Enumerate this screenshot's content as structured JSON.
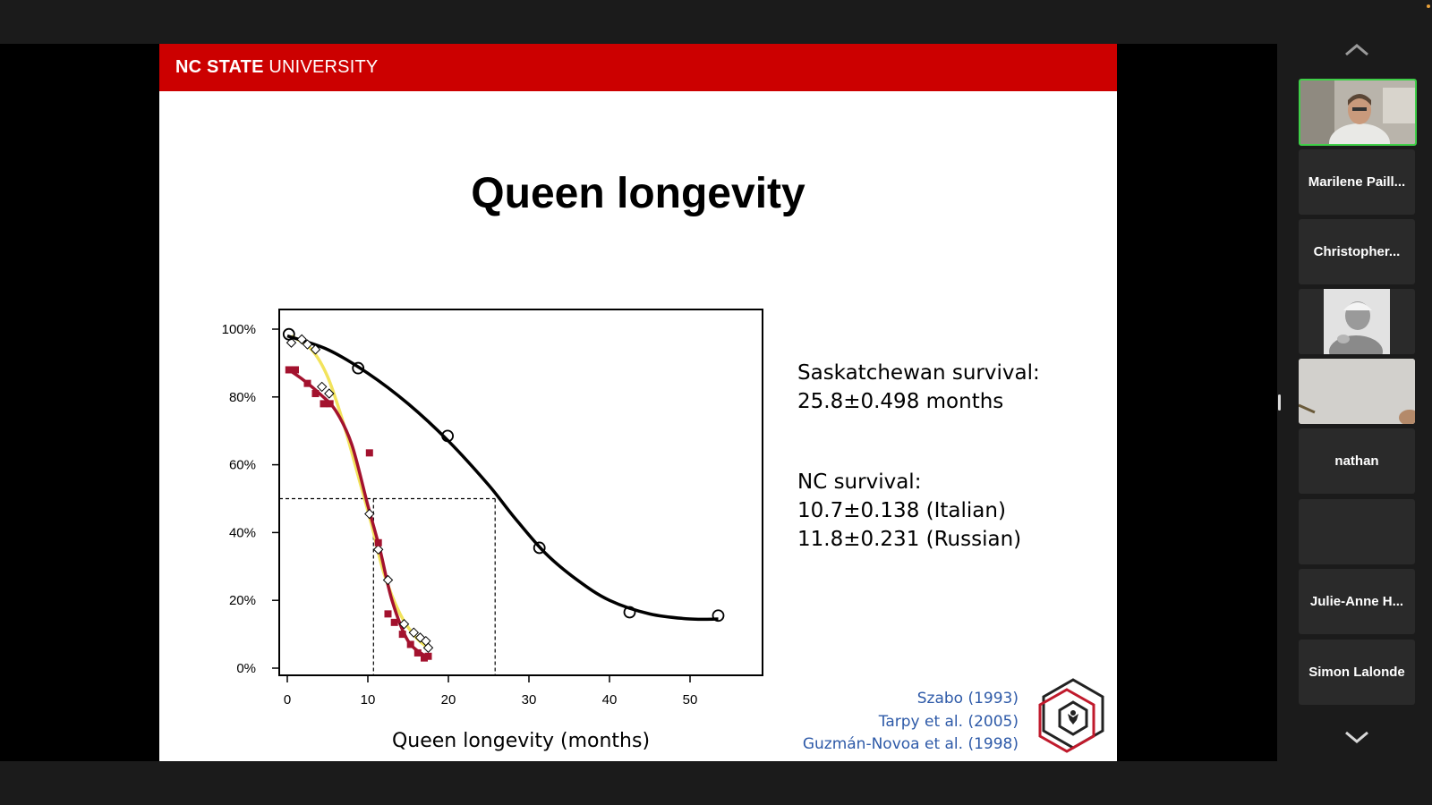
{
  "slide": {
    "brand_bold": "NC STATE",
    "brand_regular": " UNIVERSITY",
    "title": "Queen longevity",
    "stats": {
      "sask_label": "Saskatchewan survival:",
      "sask_value": "25.8±0.498 months",
      "nc_label": "NC survival:",
      "nc_italian": "10.7±0.138 (Italian)",
      "nc_russian": "11.8±0.231 (Russian)"
    },
    "references": [
      "Szabo (1993)",
      "Tarpy et al. (2005)",
      "Guzmán-Novoa et al. (1998)"
    ]
  },
  "chart_data": {
    "type": "line",
    "xlabel": "Queen longevity (months)",
    "ylabel": "",
    "xlim": [
      -1,
      59
    ],
    "ylim": [
      0,
      100
    ],
    "x_ticks": [
      0,
      10,
      20,
      30,
      40,
      50
    ],
    "y_ticks": [
      0,
      20,
      40,
      60,
      80,
      100
    ],
    "y_tick_labels": [
      "0%",
      "20%",
      "40%",
      "60%",
      "80%",
      "100%"
    ],
    "series": [
      {
        "name": "Saskatchewan",
        "color": "#000000",
        "marker": "circle",
        "points": [
          [
            0.2,
            98.5
          ],
          [
            8.8,
            88.5
          ],
          [
            19.9,
            68.5
          ],
          [
            31.3,
            35.5
          ],
          [
            42.5,
            16.5
          ],
          [
            53.5,
            15.5
          ]
        ],
        "fit": [
          [
            0,
            98
          ],
          [
            5,
            94
          ],
          [
            10,
            87
          ],
          [
            15,
            78
          ],
          [
            20,
            67
          ],
          [
            25,
            54
          ],
          [
            28,
            45
          ],
          [
            32,
            34
          ],
          [
            36,
            26
          ],
          [
            40,
            20
          ],
          [
            45,
            16
          ],
          [
            50,
            14.5
          ],
          [
            53.5,
            14.5
          ]
        ]
      },
      {
        "name": "Italian",
        "color": "#f2e35c",
        "marker": "diamond",
        "points": [
          [
            0.5,
            96
          ],
          [
            1.8,
            97
          ],
          [
            2.5,
            95.5
          ],
          [
            3.5,
            94
          ],
          [
            4.3,
            83
          ],
          [
            5.2,
            81
          ],
          [
            10.2,
            45.5
          ],
          [
            11.3,
            35
          ],
          [
            12.5,
            26
          ],
          [
            14.5,
            13
          ],
          [
            15.7,
            10.5
          ],
          [
            16.5,
            9
          ],
          [
            17.2,
            8
          ],
          [
            17.5,
            6
          ]
        ],
        "fit": [
          [
            0.5,
            98
          ],
          [
            3,
            94
          ],
          [
            5,
            86
          ],
          [
            7,
            72
          ],
          [
            9,
            55
          ],
          [
            10.5,
            42
          ],
          [
            12,
            28
          ],
          [
            14,
            16
          ],
          [
            16,
            9
          ],
          [
            17.8,
            5.5
          ]
        ]
      },
      {
        "name": "Russian",
        "color": "#a3122e",
        "marker": "square",
        "points": [
          [
            0.2,
            88
          ],
          [
            1,
            88
          ],
          [
            2.5,
            84
          ],
          [
            3.5,
            81
          ],
          [
            4.5,
            78
          ],
          [
            5.3,
            78
          ],
          [
            10.2,
            63.5
          ],
          [
            11.3,
            37
          ],
          [
            12.5,
            16
          ],
          [
            13.3,
            13.5
          ],
          [
            14.3,
            10
          ],
          [
            15.3,
            7
          ],
          [
            16.2,
            4.5
          ],
          [
            17,
            3
          ],
          [
            17.5,
            3.5
          ]
        ],
        "fit": [
          [
            0.2,
            88
          ],
          [
            2,
            85
          ],
          [
            4,
            81
          ],
          [
            6,
            76
          ],
          [
            8,
            66
          ],
          [
            10,
            48
          ],
          [
            11.5,
            35
          ],
          [
            13,
            20
          ],
          [
            15,
            8
          ],
          [
            17.5,
            3
          ]
        ]
      }
    ],
    "median_lines": [
      {
        "x": 10.7,
        "y": 50
      },
      {
        "x": 25.8,
        "y": 50
      }
    ]
  },
  "sidebar": {
    "participants": [
      {
        "name": "",
        "video": true,
        "active": true
      },
      {
        "name": "Marilene Paill...",
        "video": false
      },
      {
        "name": "Christopher...",
        "video": false
      },
      {
        "name": "",
        "video": true,
        "photo": true
      },
      {
        "name": "",
        "video": true
      },
      {
        "name": "nathan",
        "video": false
      },
      {
        "name": "",
        "video": false
      },
      {
        "name": "Julie-Anne H...",
        "video": false
      },
      {
        "name": "Simon Lalonde",
        "video": false
      }
    ]
  }
}
